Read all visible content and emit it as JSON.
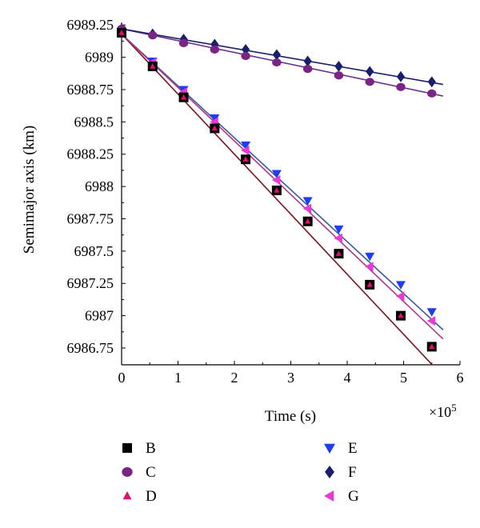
{
  "chart_data": {
    "type": "scatter",
    "xlabel": "Time (s)",
    "ylabel": "Semimajor axis (km)",
    "x_multiplier": "×10",
    "x_multiplier_exp": "5",
    "xlim": [
      0,
      6
    ],
    "ylim": [
      6986.62,
      6989.27
    ],
    "x_ticks": [
      0,
      1,
      2,
      3,
      4,
      5,
      6
    ],
    "x_tick_labels": [
      "0",
      "1",
      "2",
      "3",
      "4",
      "5",
      "6"
    ],
    "y_ticks": [
      6986.75,
      6987,
      6987.25,
      6987.5,
      6987.75,
      6988,
      6988.25,
      6988.5,
      6988.75,
      6989,
      6989.25
    ],
    "y_tick_labels": [
      "6986.75",
      "6987",
      "6987.25",
      "6987.5",
      "6987.75",
      "6988",
      "6988.25",
      "6988.5",
      "6988.75",
      "6989",
      "6989.25"
    ],
    "grid": false,
    "legend_position": "bottom",
    "series": [
      {
        "name": "B",
        "color": "#000000",
        "marker": "square",
        "line_color": "#7a1520",
        "line": [
          [
            0,
            6989.18
          ],
          [
            5.55,
            6986.6
          ]
        ],
        "x": [
          0,
          0.55,
          1.1,
          1.65,
          2.2,
          2.75,
          3.3,
          3.85,
          4.4,
          4.95,
          5.5
        ],
        "y": [
          6989.19,
          6988.93,
          6988.69,
          6988.45,
          6988.21,
          6987.97,
          6987.73,
          6987.48,
          6987.24,
          6987.0,
          6986.76
        ]
      },
      {
        "name": "C",
        "color": "#7a2585",
        "marker": "circle",
        "line_color": "#6a3090",
        "line": [
          [
            0,
            6989.22
          ],
          [
            5.7,
            6988.7
          ]
        ],
        "x": [
          0,
          0.55,
          1.1,
          1.65,
          2.2,
          2.75,
          3.3,
          3.85,
          4.4,
          4.95,
          5.5
        ],
        "y": [
          6989.22,
          6989.17,
          6989.11,
          6989.06,
          6989.01,
          6988.96,
          6988.91,
          6988.86,
          6988.81,
          6988.77,
          6988.72
        ]
      },
      {
        "name": "D",
        "color": "#e0106e",
        "marker": "triangle-up",
        "line_color": "#7a1520",
        "x": [
          0,
          0.55,
          1.1,
          1.65,
          2.2,
          2.75,
          3.3,
          3.85,
          4.4,
          4.95,
          5.5
        ],
        "y": [
          6989.19,
          6988.93,
          6988.69,
          6988.45,
          6988.21,
          6987.97,
          6987.73,
          6987.48,
          6987.24,
          6987.0,
          6986.76
        ]
      },
      {
        "name": "E",
        "color": "#1f3df2",
        "marker": "triangle-down",
        "line_color": "#3a5aa0",
        "line": [
          [
            0,
            6989.18
          ],
          [
            5.7,
            6986.89
          ]
        ],
        "x": [
          0,
          0.55,
          1.1,
          1.65,
          2.2,
          2.75,
          3.3,
          3.85,
          4.4,
          4.95,
          5.5
        ],
        "y": [
          6989.19,
          6988.97,
          6988.75,
          6988.53,
          6988.32,
          6988.1,
          6987.89,
          6987.67,
          6987.46,
          6987.24,
          6987.03
        ]
      },
      {
        "name": "F",
        "color": "#1a1f6b",
        "marker": "diamond",
        "line_color": "#1a1f6b",
        "line": [
          [
            0,
            6989.22
          ],
          [
            5.7,
            6988.79
          ]
        ],
        "x": [
          0,
          0.55,
          1.1,
          1.65,
          2.2,
          2.75,
          3.3,
          3.85,
          4.4,
          4.95,
          5.5
        ],
        "y": [
          6989.22,
          6989.18,
          6989.14,
          6989.1,
          6989.06,
          6989.02,
          6988.97,
          6988.93,
          6988.89,
          6988.85,
          6988.81
        ]
      },
      {
        "name": "G",
        "color": "#e83ad8",
        "marker": "triangle-left",
        "line_color": "#b0388a",
        "line": [
          [
            0,
            6989.18
          ],
          [
            5.7,
            6986.82
          ]
        ],
        "x": [
          0,
          0.55,
          1.1,
          1.65,
          2.2,
          2.75,
          3.3,
          3.85,
          4.4,
          4.95,
          5.5
        ],
        "y": [
          6989.19,
          6988.96,
          6988.73,
          6988.5,
          6988.28,
          6988.05,
          6987.83,
          6987.6,
          6987.38,
          6987.15,
          6986.96
        ]
      }
    ]
  }
}
